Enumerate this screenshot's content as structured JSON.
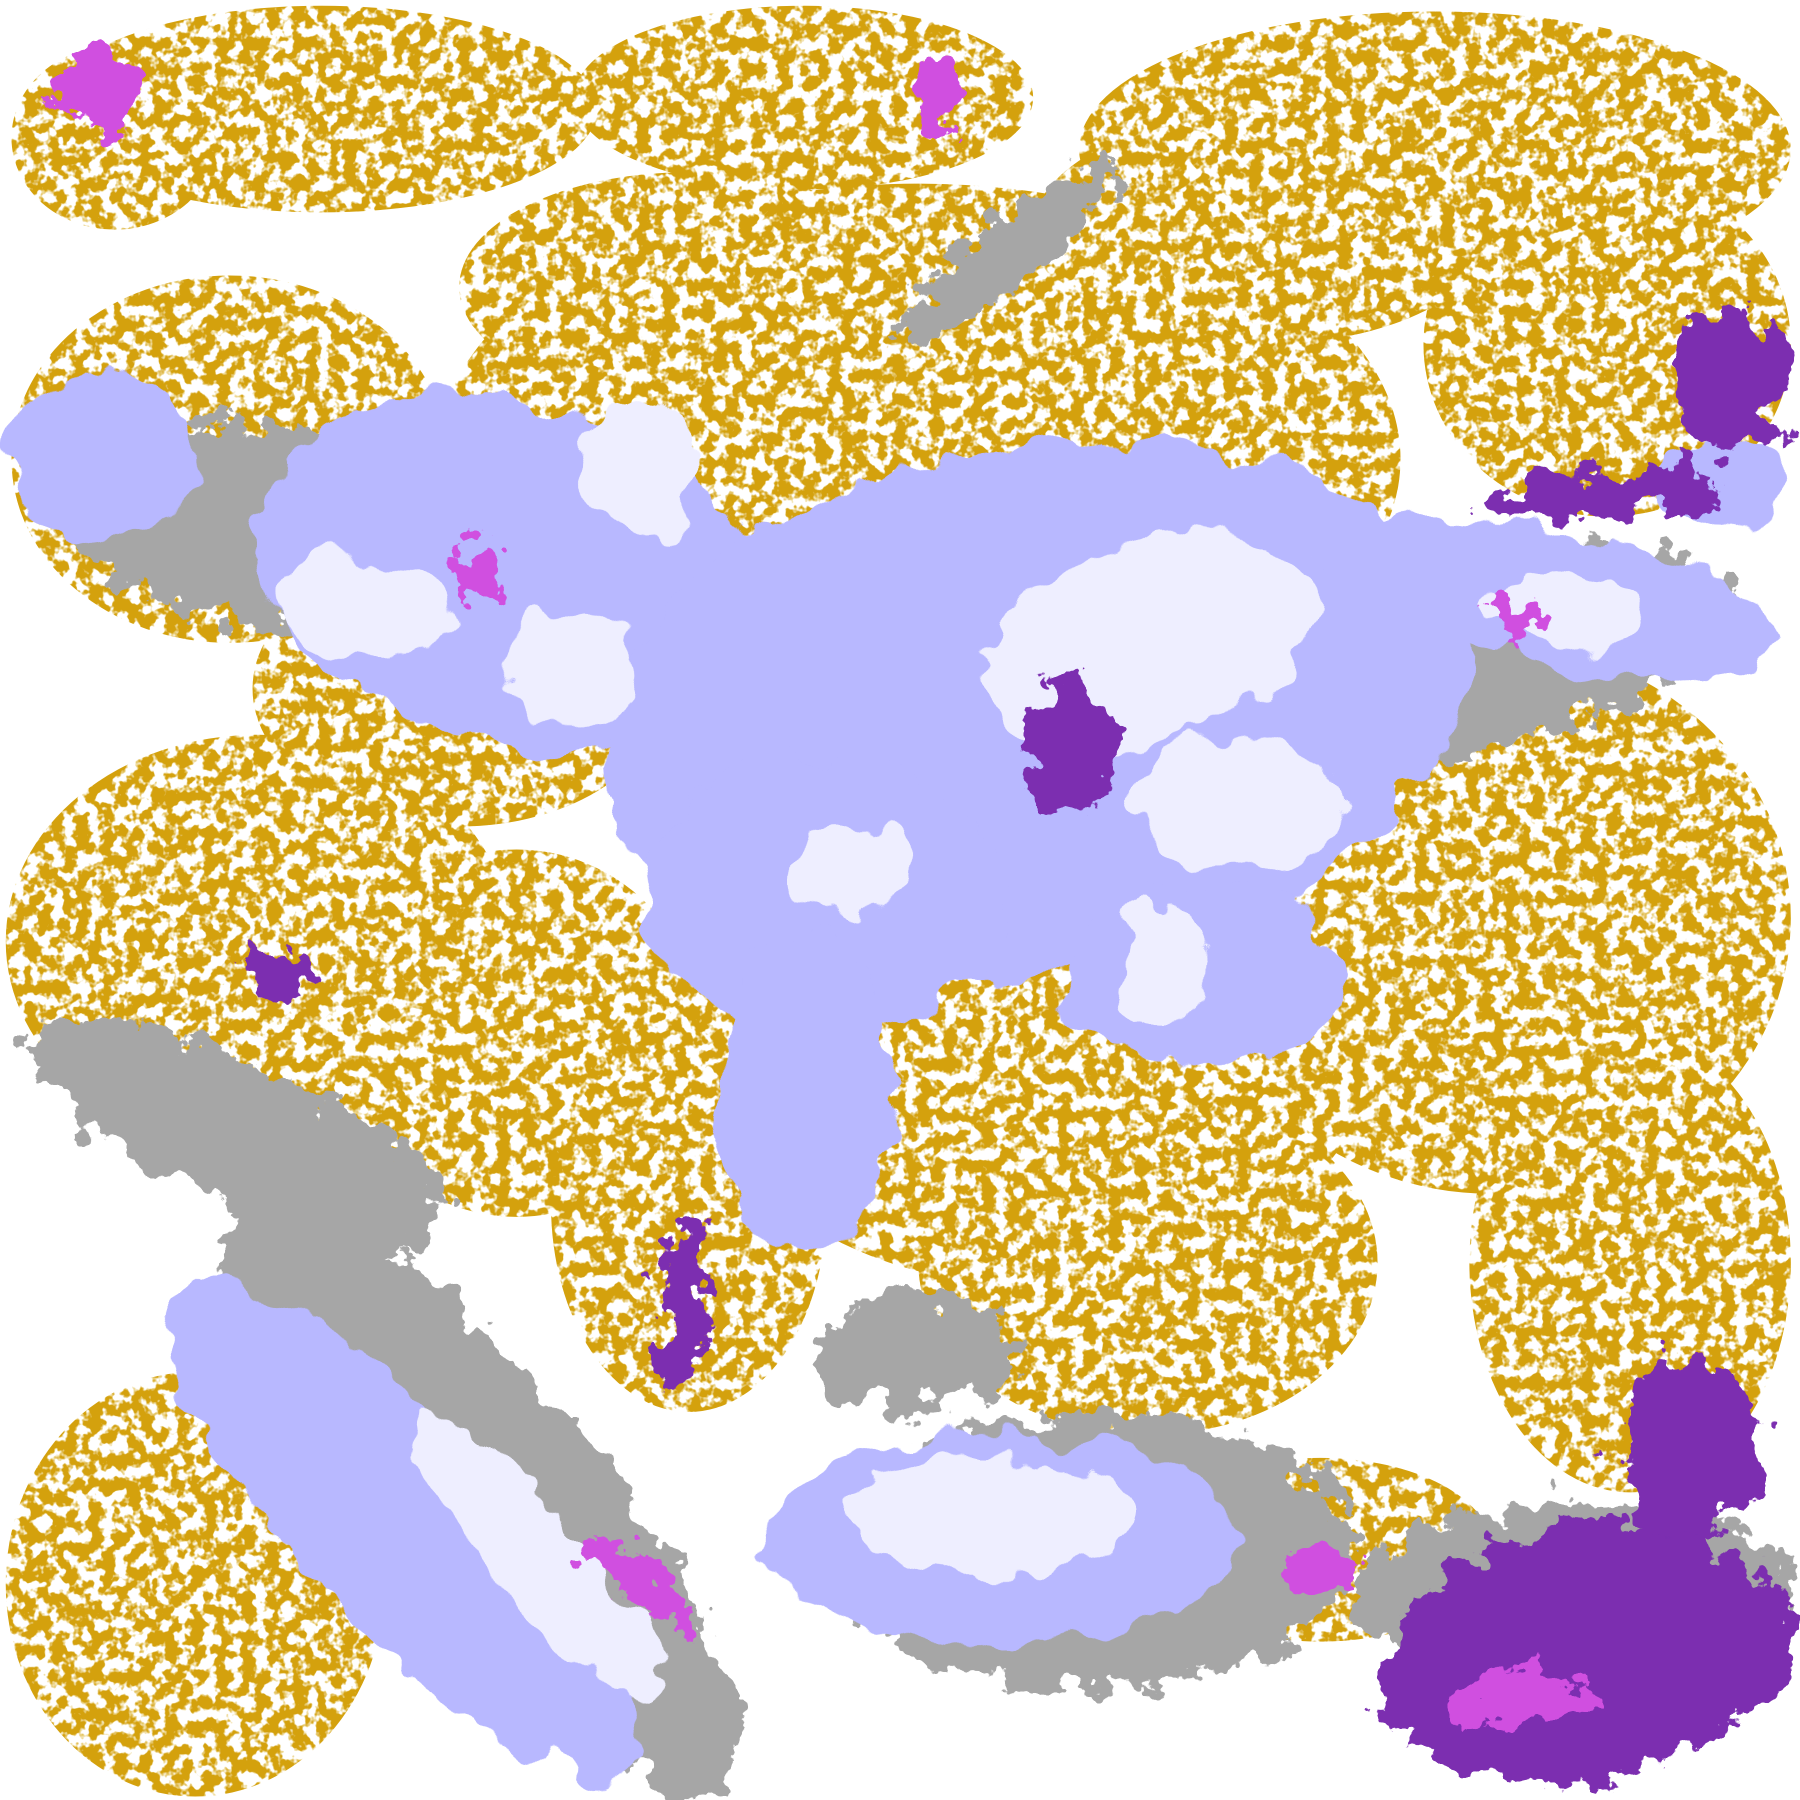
{
  "map": {
    "palette": {
      "background": "#ffffff",
      "gold": "#d4a10a",
      "dark_gold": "#b8860b",
      "gray": "#a6a6a6",
      "light_lavender": "#b8b8ff",
      "pale_lavender": "#eeeeff",
      "periwinkle": "#9a9aee",
      "magenta": "#d050e0",
      "purple": "#7b2fb0"
    }
  }
}
